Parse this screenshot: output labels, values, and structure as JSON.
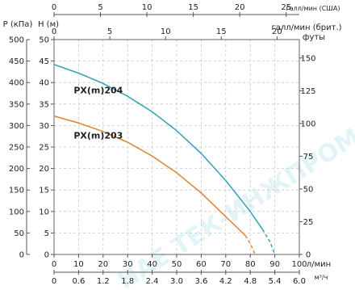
{
  "chart_data": {
    "type": "line",
    "watermark": "HAE ТЕК-ИНЖПРОМ",
    "x_primary": {
      "unit": "л/мин",
      "ticks": [
        0,
        10,
        20,
        30,
        40,
        50,
        60,
        70,
        80,
        90,
        100
      ],
      "range": [
        0,
        100
      ]
    },
    "x_bottom_m3h": {
      "unit": "м³/ч",
      "ticks": [
        "0",
        "0.6",
        "1.2",
        "1.8",
        "2.4",
        "3.0",
        "3.6",
        "4.2",
        "4.8",
        "5.4",
        "6.0"
      ]
    },
    "x_top_us_gpm": {
      "unit": "галл/мин (США)",
      "ticks": [
        "0",
        "5",
        "10",
        "15",
        "20",
        "25"
      ]
    },
    "x_top_uk_gpm": {
      "unit": "галл/мин (брит.)",
      "ticks": [
        "0",
        "5",
        "10",
        "15",
        "20"
      ]
    },
    "y_primary": {
      "unit": "H (м)",
      "ticks": [
        0,
        5,
        10,
        15,
        20,
        25,
        30,
        35,
        40,
        45,
        50
      ],
      "range": [
        0,
        50
      ]
    },
    "y_left_kpa": {
      "unit": "P (кПа)",
      "ticks": [
        "0",
        "50",
        "100",
        "150",
        "200",
        "250",
        "300",
        "350",
        "400",
        "450",
        "500"
      ]
    },
    "y_right_ft": {
      "unit": "футы",
      "ticks": [
        "0",
        "25",
        "50",
        "75",
        "100",
        "125",
        "150"
      ]
    },
    "series": [
      {
        "name": "PX(m)204",
        "color": "#3aa5b3",
        "x": [
          0,
          10,
          20,
          30,
          40,
          50,
          60,
          70,
          80,
          85
        ],
        "y": [
          44.2,
          42.2,
          39.8,
          36.8,
          33.2,
          28.8,
          23.5,
          17.2,
          10,
          5.8
        ],
        "dashed_x": [
          85,
          88,
          90
        ],
        "dashed_y": [
          5.8,
          3,
          0
        ]
      },
      {
        "name": "PX(m)203",
        "color": "#e0893a",
        "x": [
          0,
          10,
          20,
          30,
          40,
          50,
          60,
          70,
          78
        ],
        "y": [
          32.2,
          30.6,
          28.6,
          26.1,
          22.9,
          19,
          14.3,
          8.8,
          4.4
        ],
        "dashed_x": [
          78,
          80,
          82
        ],
        "dashed_y": [
          4.4,
          2.5,
          0
        ]
      }
    ]
  }
}
